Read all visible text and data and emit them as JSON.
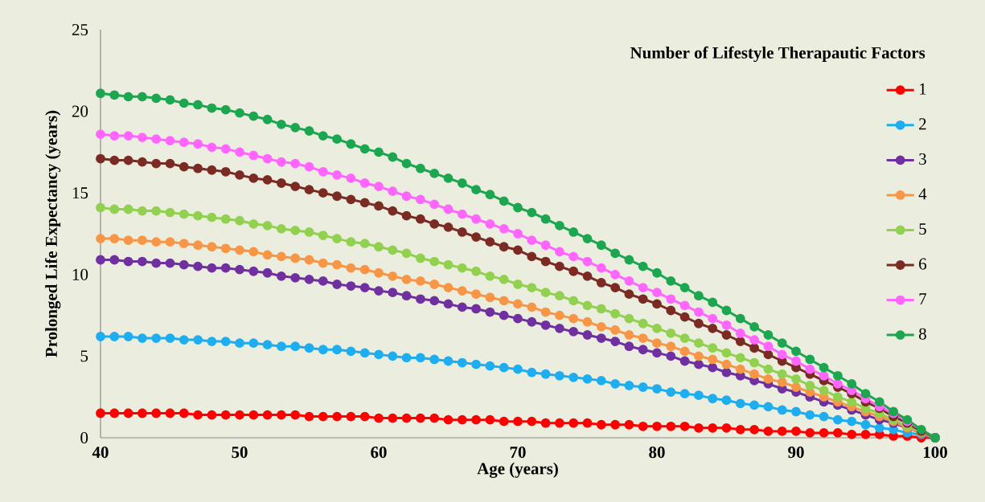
{
  "chart_data": {
    "type": "line",
    "xlabel": "Age (years)",
    "ylabel": "Prolonged Life Expectancy (years)",
    "legend_title": "Number of Lifestyle Therapautic Factors",
    "legend": "top right",
    "marker": "circle",
    "line_style": "solid",
    "xlim": [
      40,
      100
    ],
    "ylim": [
      0,
      25
    ],
    "xticks": [
      40,
      50,
      60,
      70,
      80,
      90,
      100
    ],
    "yticks": [
      0,
      5,
      10,
      15,
      20,
      25
    ],
    "x": [
      40,
      41,
      42,
      43,
      44,
      45,
      46,
      47,
      48,
      49,
      50,
      51,
      52,
      53,
      54,
      55,
      56,
      57,
      58,
      59,
      60,
      61,
      62,
      63,
      64,
      65,
      66,
      67,
      68,
      69,
      70,
      71,
      72,
      73,
      74,
      75,
      76,
      77,
      78,
      79,
      80,
      81,
      82,
      83,
      84,
      85,
      86,
      87,
      88,
      89,
      90,
      91,
      92,
      93,
      94,
      95,
      96,
      97,
      98,
      99,
      100
    ],
    "series": [
      {
        "name": "1",
        "color": "#ff0000",
        "values": [
          1.5,
          1.5,
          1.5,
          1.5,
          1.5,
          1.5,
          1.5,
          1.4,
          1.4,
          1.4,
          1.4,
          1.4,
          1.4,
          1.4,
          1.4,
          1.3,
          1.3,
          1.3,
          1.3,
          1.3,
          1.2,
          1.2,
          1.2,
          1.2,
          1.2,
          1.1,
          1.1,
          1.1,
          1.1,
          1.0,
          1.0,
          1.0,
          0.9,
          0.9,
          0.9,
          0.9,
          0.8,
          0.8,
          0.8,
          0.7,
          0.7,
          0.7,
          0.7,
          0.6,
          0.6,
          0.6,
          0.5,
          0.5,
          0.4,
          0.4,
          0.4,
          0.3,
          0.3,
          0.3,
          0.2,
          0.2,
          0.2,
          0.1,
          0.1,
          0.0,
          0
        ]
      },
      {
        "name": "2",
        "color": "#1eaef0",
        "values": [
          6.2,
          6.2,
          6.2,
          6.1,
          6.1,
          6.1,
          6.0,
          6.0,
          5.9,
          5.9,
          5.8,
          5.8,
          5.7,
          5.6,
          5.6,
          5.5,
          5.4,
          5.4,
          5.3,
          5.2,
          5.1,
          5.0,
          4.9,
          4.9,
          4.8,
          4.7,
          4.6,
          4.5,
          4.4,
          4.3,
          4.2,
          4.0,
          3.9,
          3.8,
          3.7,
          3.6,
          3.5,
          3.3,
          3.2,
          3.1,
          3.0,
          2.8,
          2.7,
          2.6,
          2.4,
          2.3,
          2.1,
          2.0,
          1.9,
          1.7,
          1.6,
          1.4,
          1.3,
          1.1,
          1.0,
          0.8,
          0.6,
          0.5,
          0.3,
          0.2,
          0
        ]
      },
      {
        "name": "3",
        "color": "#7030a0",
        "values": [
          10.9,
          10.9,
          10.8,
          10.8,
          10.7,
          10.7,
          10.6,
          10.5,
          10.4,
          10.4,
          10.3,
          10.2,
          10.1,
          9.9,
          9.8,
          9.7,
          9.6,
          9.4,
          9.3,
          9.2,
          9.0,
          8.9,
          8.7,
          8.5,
          8.4,
          8.2,
          8.0,
          7.9,
          7.7,
          7.5,
          7.3,
          7.1,
          6.9,
          6.7,
          6.5,
          6.3,
          6.1,
          5.9,
          5.6,
          5.4,
          5.2,
          5.0,
          4.7,
          4.5,
          4.3,
          4.0,
          3.8,
          3.5,
          3.3,
          3.0,
          2.8,
          2.5,
          2.2,
          2.0,
          1.7,
          1.4,
          1.1,
          0.9,
          0.6,
          0.3,
          0
        ]
      },
      {
        "name": "4",
        "color": "#f79646",
        "values": [
          12.2,
          12.2,
          12.1,
          12.1,
          12.0,
          12.0,
          11.9,
          11.8,
          11.7,
          11.6,
          11.5,
          11.4,
          11.2,
          11.1,
          11.0,
          10.9,
          10.7,
          10.6,
          10.4,
          10.3,
          10.1,
          9.9,
          9.7,
          9.6,
          9.4,
          9.2,
          9.0,
          8.8,
          8.6,
          8.4,
          8.2,
          8.0,
          7.7,
          7.5,
          7.3,
          7.1,
          6.8,
          6.6,
          6.3,
          6.1,
          5.8,
          5.6,
          5.3,
          5.0,
          4.8,
          4.5,
          4.2,
          3.9,
          3.6,
          3.4,
          3.1,
          2.8,
          2.5,
          2.2,
          1.9,
          1.6,
          1.3,
          1.0,
          0.6,
          0.3,
          0
        ]
      },
      {
        "name": "5",
        "color": "#92d050",
        "values": [
          14.1,
          14.0,
          14.0,
          13.9,
          13.9,
          13.8,
          13.7,
          13.6,
          13.5,
          13.4,
          13.3,
          13.1,
          13.0,
          12.8,
          12.7,
          12.6,
          12.4,
          12.2,
          12.0,
          11.9,
          11.7,
          11.5,
          11.3,
          11.0,
          10.8,
          10.6,
          10.4,
          10.2,
          9.9,
          9.7,
          9.4,
          9.2,
          8.9,
          8.7,
          8.4,
          8.1,
          7.9,
          7.6,
          7.3,
          7.0,
          6.7,
          6.4,
          6.1,
          5.8,
          5.5,
          5.2,
          4.9,
          4.6,
          4.2,
          3.9,
          3.6,
          3.2,
          2.9,
          2.5,
          2.2,
          1.8,
          1.5,
          1.1,
          0.7,
          0.4,
          0
        ]
      },
      {
        "name": "6",
        "color": "#7b2b24",
        "values": [
          17.1,
          17.0,
          17.0,
          16.9,
          16.8,
          16.8,
          16.6,
          16.5,
          16.4,
          16.3,
          16.1,
          15.9,
          15.8,
          15.6,
          15.4,
          15.2,
          15.0,
          14.8,
          14.6,
          14.4,
          14.2,
          13.9,
          13.6,
          13.4,
          13.1,
          12.9,
          12.6,
          12.3,
          12.0,
          11.7,
          11.5,
          11.1,
          10.8,
          10.5,
          10.2,
          9.9,
          9.5,
          9.2,
          8.8,
          8.5,
          8.2,
          7.8,
          7.4,
          7.0,
          6.7,
          6.3,
          5.9,
          5.5,
          5.1,
          4.7,
          4.3,
          3.9,
          3.5,
          3.1,
          2.7,
          2.2,
          1.8,
          1.3,
          0.9,
          0.4,
          0
        ]
      },
      {
        "name": "7",
        "color": "#ff66ff",
        "values": [
          18.6,
          18.5,
          18.5,
          18.4,
          18.3,
          18.2,
          18.1,
          18.0,
          17.8,
          17.7,
          17.5,
          17.3,
          17.1,
          16.9,
          16.8,
          16.6,
          16.3,
          16.1,
          15.9,
          15.6,
          15.4,
          15.1,
          14.8,
          14.6,
          14.3,
          14.0,
          13.7,
          13.4,
          13.1,
          12.8,
          12.5,
          12.1,
          11.8,
          11.4,
          11.1,
          10.8,
          10.4,
          10.0,
          9.6,
          9.2,
          8.9,
          8.5,
          8.1,
          7.7,
          7.3,
          6.9,
          6.4,
          6.0,
          5.6,
          5.1,
          4.7,
          4.2,
          3.8,
          3.3,
          2.9,
          2.4,
          1.9,
          1.5,
          1.0,
          null,
          0
        ]
      },
      {
        "name": "8",
        "color": "#1da650",
        "values": [
          21.1,
          21.0,
          20.9,
          20.9,
          20.8,
          20.7,
          20.5,
          20.4,
          20.2,
          20.1,
          19.9,
          19.7,
          19.5,
          19.2,
          19.0,
          18.8,
          18.5,
          18.3,
          18.0,
          17.7,
          17.5,
          17.2,
          16.8,
          16.5,
          16.2,
          15.9,
          15.6,
          15.2,
          14.9,
          14.5,
          14.1,
          13.8,
          13.4,
          13.0,
          12.6,
          12.2,
          11.8,
          11.3,
          10.9,
          10.5,
          10.1,
          9.6,
          9.2,
          8.7,
          8.3,
          7.8,
          7.3,
          6.8,
          6.3,
          5.8,
          5.3,
          4.8,
          4.3,
          3.8,
          3.3,
          2.7,
          2.2,
          1.6,
          1.1,
          0.5,
          0
        ]
      }
    ]
  }
}
